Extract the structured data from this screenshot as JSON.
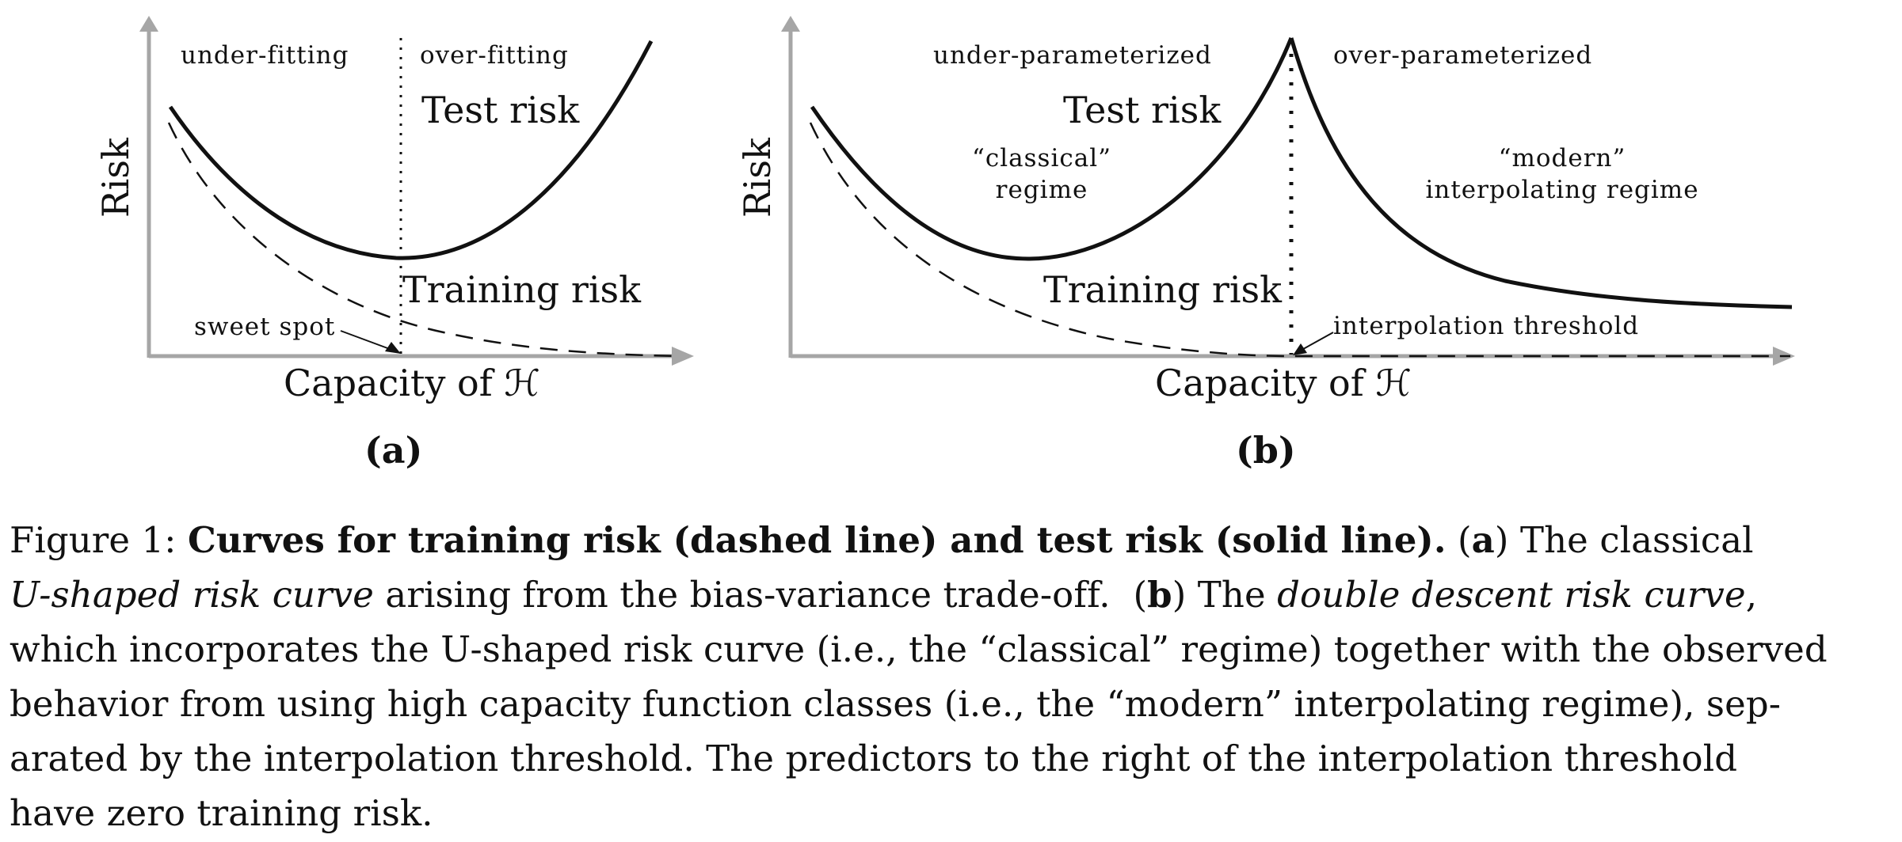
{
  "panels": [
    {
      "id": "a",
      "panel_label": "(a)",
      "y_axis_label": "Risk",
      "x_axis_label": "Capacity of ℋ",
      "region_labels": [
        "under-fitting",
        "over-fitting"
      ],
      "test_curve_label": "Test risk",
      "train_curve_label": "Training risk",
      "pointer_label": "sweet spot"
    },
    {
      "id": "b",
      "panel_label": "(b)",
      "y_axis_label": "Risk",
      "x_axis_label": "Capacity of ℋ",
      "region_labels": [
        "under-parameterized",
        "over-parameterized"
      ],
      "test_curve_label": "Test risk",
      "train_curve_label": "Training risk",
      "regime_left": [
        "“classical”",
        "regime"
      ],
      "regime_right": [
        "“modern”",
        "interpolating regime"
      ],
      "pointer_label": "interpolation threshold"
    }
  ],
  "chart_data": [
    {
      "type": "line",
      "title": "(a)",
      "xlabel": "Capacity of ℋ",
      "ylabel": "Risk",
      "xlim": [
        0,
        10
      ],
      "ylim": [
        0,
        10
      ],
      "grid": false,
      "series": [
        {
          "name": "Test risk",
          "style": "solid",
          "x": [
            0,
            1,
            2,
            3,
            4,
            5,
            6,
            7,
            8,
            9,
            10
          ],
          "y": [
            7.8,
            5.6,
            4.1,
            3.3,
            3.0,
            3.1,
            3.9,
            5.0,
            6.4,
            8.1,
            9.9
          ]
        },
        {
          "name": "Training risk",
          "style": "dashed",
          "x": [
            0,
            1,
            2,
            3,
            4,
            5,
            6,
            7,
            8,
            9,
            10
          ],
          "y": [
            7.4,
            5.1,
            3.6,
            2.5,
            1.7,
            1.1,
            0.7,
            0.4,
            0.2,
            0.05,
            0.0
          ]
        }
      ],
      "annotations": [
        "under-fitting",
        "over-fitting",
        "sweet spot"
      ]
    },
    {
      "type": "line",
      "title": "(b)",
      "xlabel": "Capacity of ℋ",
      "ylabel": "Risk",
      "xlim": [
        0,
        10
      ],
      "ylim": [
        0,
        10
      ],
      "grid": false,
      "series": [
        {
          "name": "Test risk",
          "style": "solid",
          "x": [
            0,
            1,
            2,
            2.5,
            3,
            4,
            5,
            5,
            6,
            7,
            8,
            9,
            10
          ],
          "y": [
            7.8,
            5.1,
            3.4,
            3.0,
            3.1,
            4.6,
            9.9,
            9.9,
            5.6,
            3.6,
            2.6,
            2.0,
            1.6
          ]
        },
        {
          "name": "Training risk",
          "style": "dashed",
          "x": [
            0,
            1,
            2,
            3,
            4,
            5,
            10
          ],
          "y": [
            7.4,
            3.8,
            1.7,
            0.7,
            0.2,
            0.0,
            0.0
          ]
        }
      ],
      "annotations": [
        "under-parameterized",
        "over-parameterized",
        "“classical” regime",
        "“modern” interpolating regime",
        "interpolation threshold"
      ]
    }
  ],
  "caption": {
    "figure_label": "Figure 1:",
    "bold_title": "Curves for training risk (dashed line) and test risk (solid line).",
    "a_open": "(",
    "a_letter": "a",
    "a_close": ")",
    "a_text": "The classical",
    "a_italic": "U-shaped risk curve",
    "a_rest": "arising from the bias-variance trade-off.",
    "b_open": "(",
    "b_letter": "b",
    "b_close": ")",
    "b_the": "The",
    "b_italic": "double descent risk curve",
    "line3": "which incorporates the U-shaped risk curve (i.e., the “classical” regime) together with the observed",
    "line4": "behavior from using high capacity function classes (i.e., the “modern” interpolating regime), sep-",
    "line5": "arated by the interpolation threshold.  The predictors to the right of the interpolation threshold",
    "line6": "have zero training risk."
  },
  "colors": {
    "axis": "#a6a6a6",
    "curve": "#111111"
  }
}
